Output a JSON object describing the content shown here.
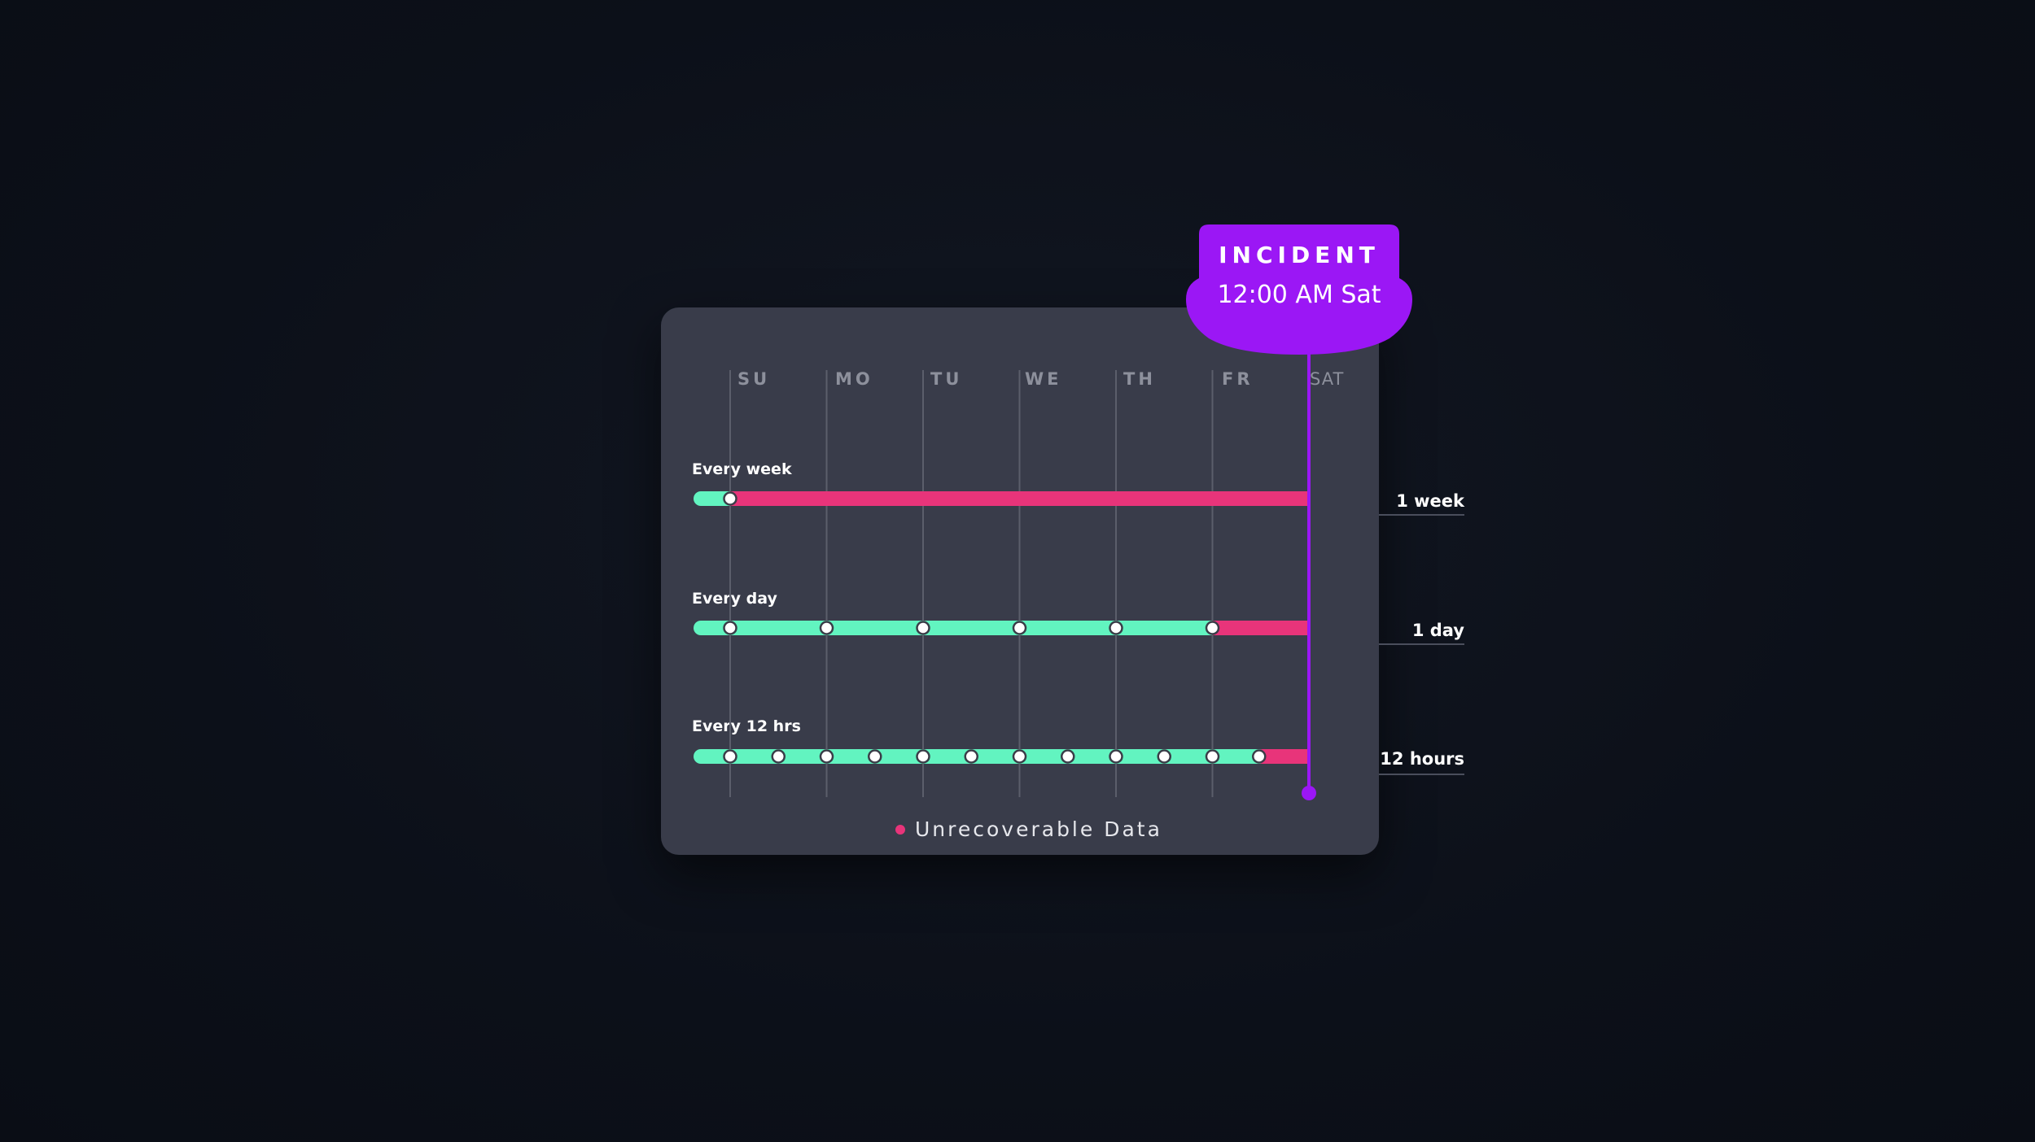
{
  "days": [
    "SU",
    "MO",
    "TU",
    "WE",
    "TH",
    "FR",
    "SAT"
  ],
  "incident": {
    "title": "INCIDENT",
    "time": "12:00 AM Sat",
    "day_position": 6
  },
  "rows": [
    {
      "label": "Every week",
      "loss_label": "1 week",
      "backups_at_days": [
        0
      ],
      "loss_starts_at_day": 0
    },
    {
      "label": "Every day",
      "loss_label": "1 day",
      "backups_at_days": [
        0,
        1,
        2,
        3,
        4,
        5
      ],
      "loss_starts_at_day": 5
    },
    {
      "label": "Every 12 hrs",
      "loss_label": "12 hours",
      "backups_at_days": [
        0,
        0.5,
        1,
        1.5,
        2,
        2.5,
        3,
        3.5,
        4,
        4.5,
        5,
        5.5
      ],
      "loss_starts_at_day": 5.5
    }
  ],
  "legend": {
    "label": "Unrecoverable Data"
  },
  "colors": {
    "background": "#0d111a",
    "card": "#393c4a",
    "recoverable": "#62f4c0",
    "unrecoverable": "#e8347a",
    "incident": "#9b17f5",
    "gridline": "#5b5e6b",
    "day_label": "#8d909c"
  }
}
